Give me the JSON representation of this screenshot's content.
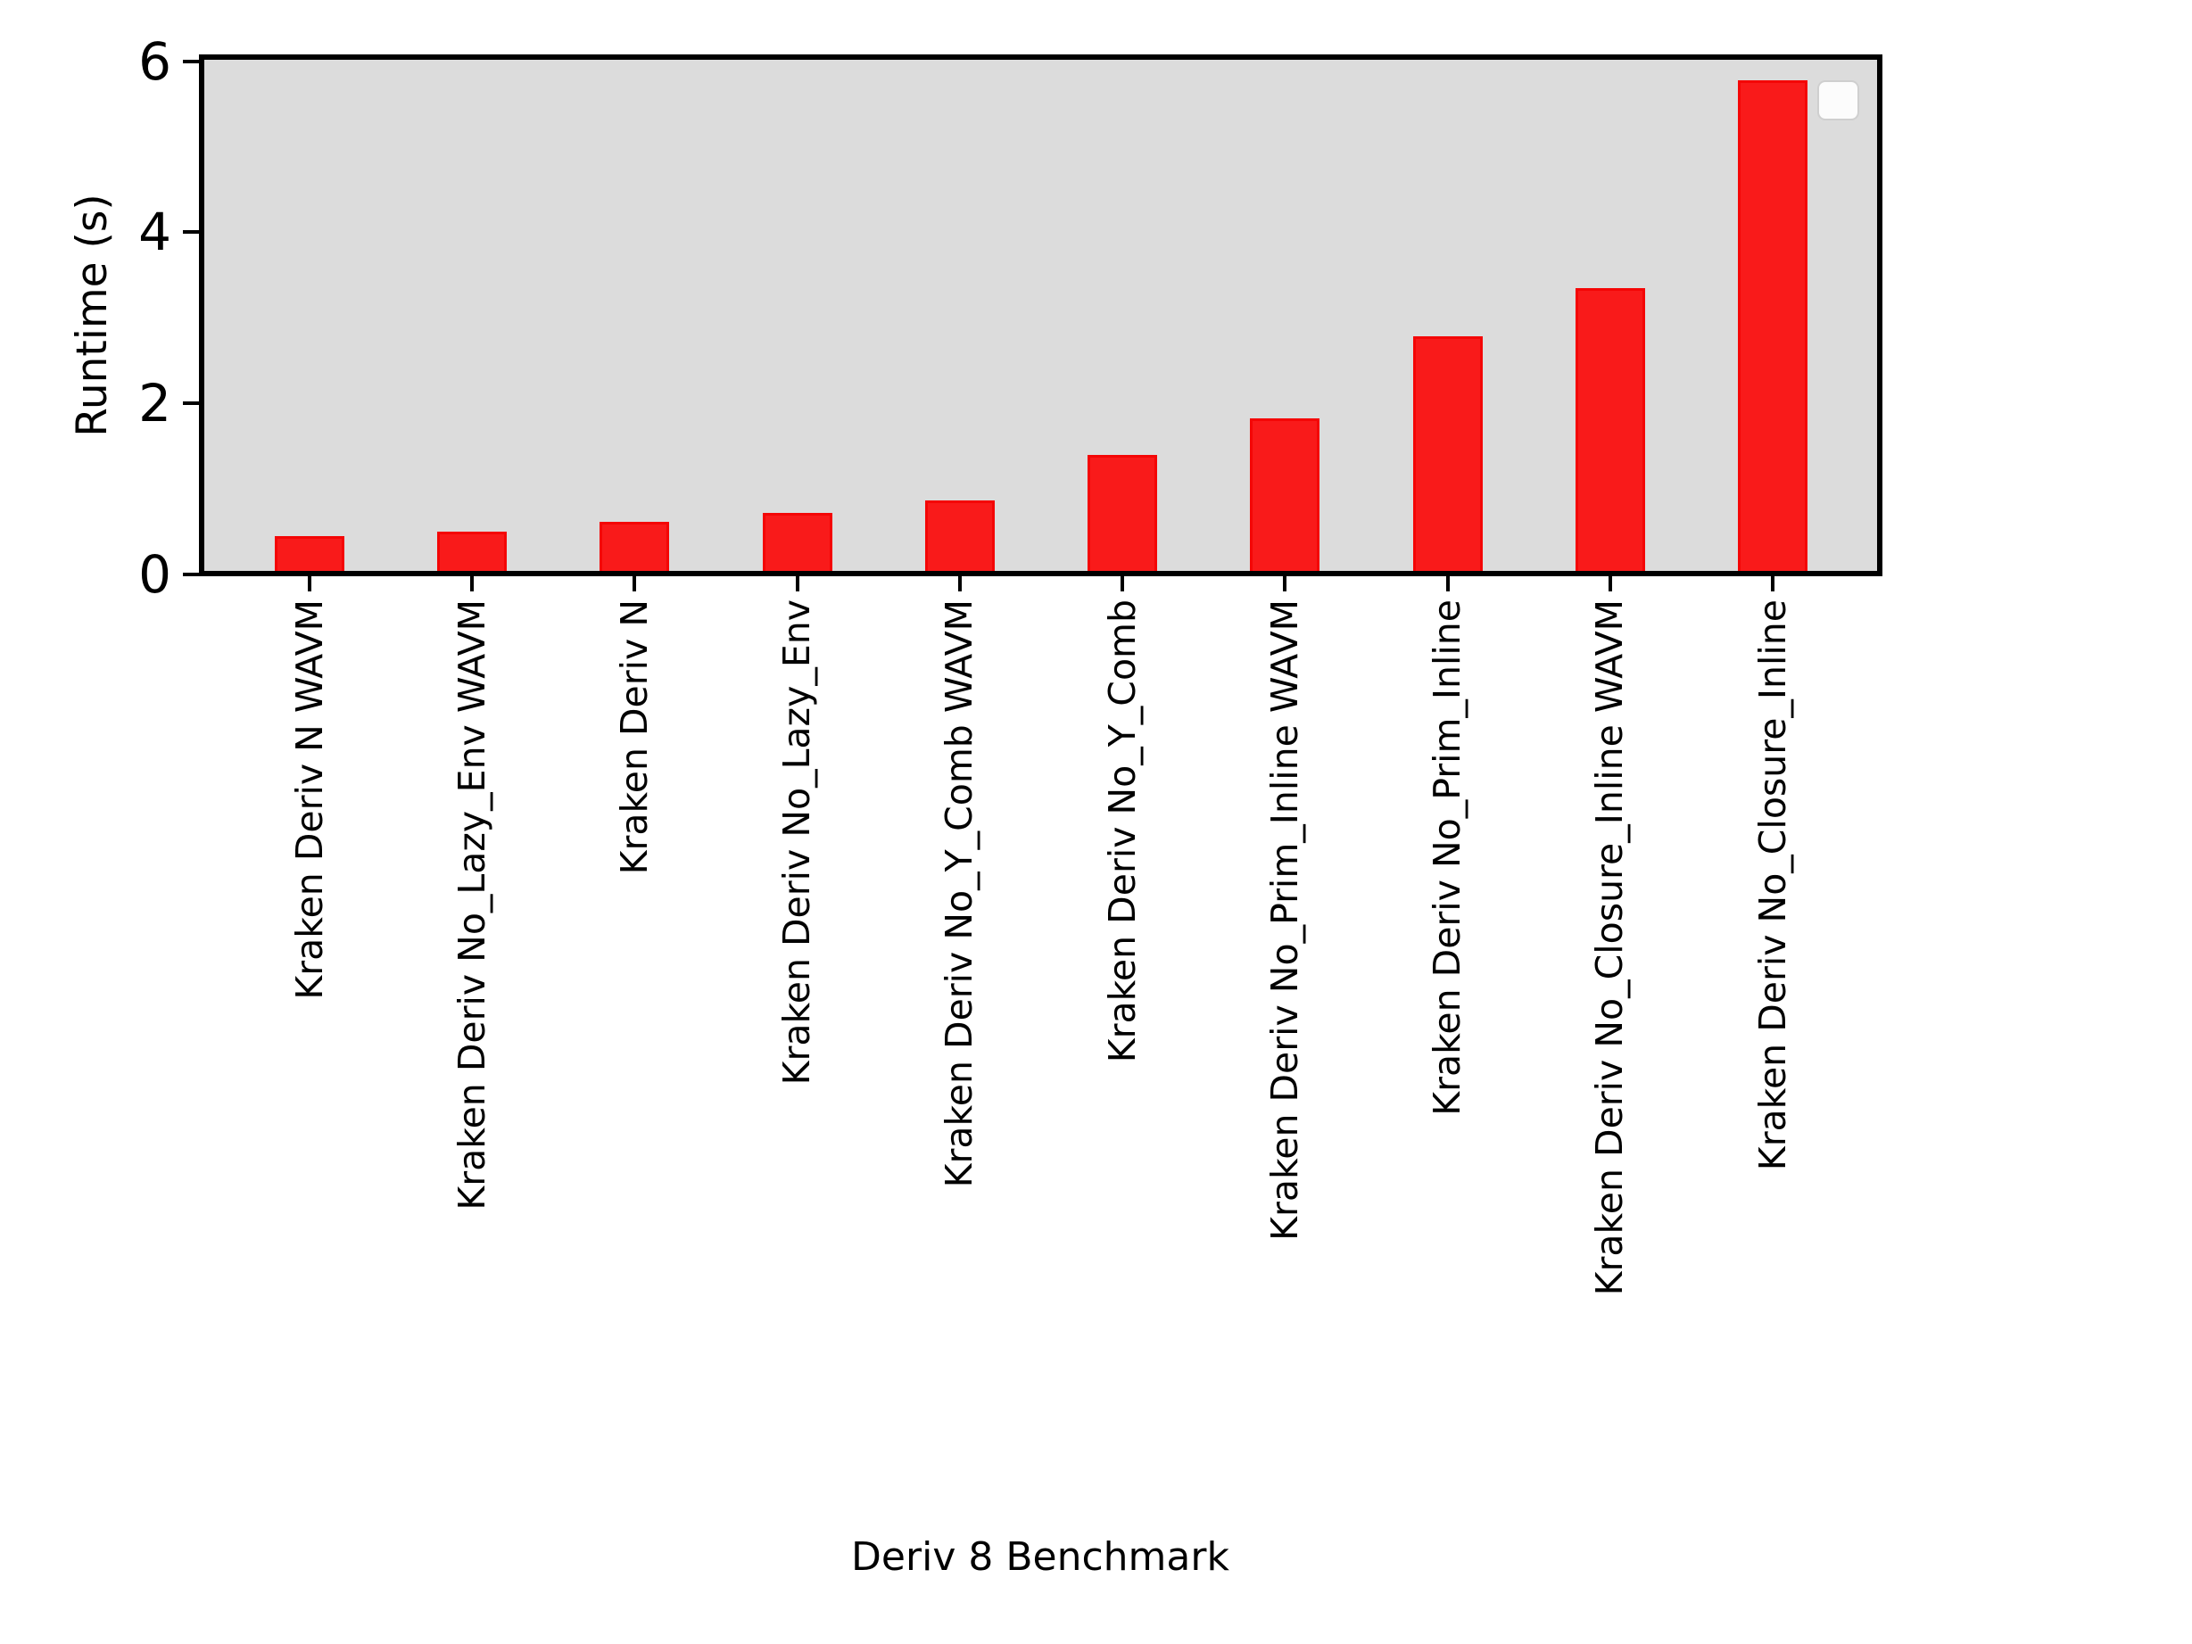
{
  "chart_data": {
    "type": "bar",
    "title": "",
    "xlabel": "Deriv 8 Benchmark",
    "ylabel": "Runtime (s)",
    "categories": [
      "Kraken Deriv N WAVM",
      "Kraken Deriv No_Lazy_Env WAVM",
      "Kraken Deriv N",
      "Kraken Deriv No_Lazy_Env",
      "Kraken Deriv No_Y_Comb WAVM",
      "Kraken Deriv No_Y_Comb",
      "Kraken Deriv No_Prim_Inline WAVM",
      "Kraken Deriv No_Prim_Inline",
      "Kraken Deriv No_Closure_Inline WAVM",
      "Kraken Deriv No_Closure_Inline"
    ],
    "series": [
      {
        "name": "Runtime (s)",
        "values": [
          0.44,
          0.5,
          0.61,
          0.71,
          0.86,
          1.39,
          1.82,
          2.78,
          3.35,
          5.78
        ]
      }
    ],
    "values": [
      0.44,
      0.5,
      0.61,
      0.71,
      0.86,
      1.39,
      1.82,
      2.78,
      3.35,
      5.78
    ],
    "yticks": [
      "0",
      "2",
      "4",
      "6"
    ],
    "ytick_values": [
      0,
      2,
      4,
      6
    ],
    "ylim": [
      0,
      6.05
    ],
    "grid": false,
    "legend": {
      "visible": true,
      "position": "upper-right",
      "entries": []
    },
    "colors": {
      "bar_fill": "#f91a1a",
      "bar_edge": "#f40606",
      "plot_background": "#dcdcdc",
      "axis": "#000000",
      "text": "#000000",
      "figure_background": "#ffffff",
      "legend_background": "#fcfcfc",
      "legend_border": "#cfcfcf"
    }
  }
}
